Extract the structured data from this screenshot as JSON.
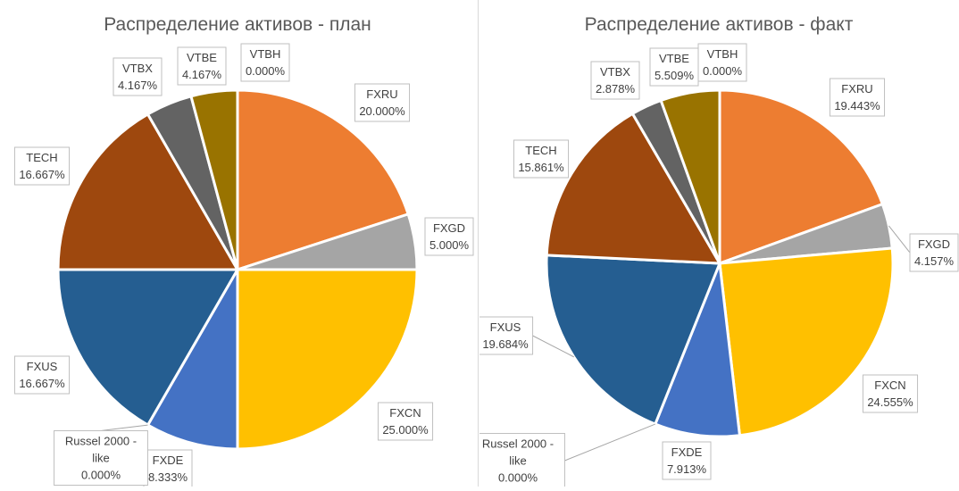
{
  "chart_data": [
    {
      "type": "pie",
      "title": "Распределение активов - план",
      "slices": [
        {
          "label": "FXRU",
          "value": 20.0,
          "value_text": "20.000%",
          "color": "#ED7D31"
        },
        {
          "label": "FXGD",
          "value": 5.0,
          "value_text": "5.000%",
          "color": "#A5A5A5"
        },
        {
          "label": "FXCN",
          "value": 25.0,
          "value_text": "25.000%",
          "color": "#FFC000"
        },
        {
          "label": "FXDE",
          "value": 8.333,
          "value_text": "8.333%",
          "color": "#4472C4"
        },
        {
          "label": "Russel 2000 - like",
          "value": 0.0,
          "value_text": "0.000%",
          "color": "#70AD47"
        },
        {
          "label": "FXUS",
          "value": 16.667,
          "value_text": "16.667%",
          "color": "#255E91"
        },
        {
          "label": "TECH",
          "value": 16.667,
          "value_text": "16.667%",
          "color": "#9E480E"
        },
        {
          "label": "VTBX",
          "value": 4.167,
          "value_text": "4.167%",
          "color": "#636363"
        },
        {
          "label": "VTBE",
          "value": 4.167,
          "value_text": "4.167%",
          "color": "#997300"
        },
        {
          "label": "VTBH",
          "value": 0.0,
          "value_text": "0.000%",
          "color": "#264478"
        }
      ]
    },
    {
      "type": "pie",
      "title": "Распределение активов - факт",
      "slices": [
        {
          "label": "FXRU",
          "value": 19.443,
          "value_text": "19.443%",
          "color": "#ED7D31"
        },
        {
          "label": "FXGD",
          "value": 4.157,
          "value_text": "4.157%",
          "color": "#A5A5A5"
        },
        {
          "label": "FXCN",
          "value": 24.555,
          "value_text": "24.555%",
          "color": "#FFC000"
        },
        {
          "label": "FXDE",
          "value": 7.913,
          "value_text": "7.913%",
          "color": "#4472C4"
        },
        {
          "label": "Russel 2000 - like",
          "value": 0.0,
          "value_text": "0.000%",
          "color": "#70AD47"
        },
        {
          "label": "FXUS",
          "value": 19.684,
          "value_text": "19.684%",
          "color": "#255E91"
        },
        {
          "label": "TECH",
          "value": 15.861,
          "value_text": "15.861%",
          "color": "#9E480E"
        },
        {
          "label": "VTBX",
          "value": 2.878,
          "value_text": "2.878%",
          "color": "#636363"
        },
        {
          "label": "VTBE",
          "value": 5.509,
          "value_text": "5.509%",
          "color": "#997300"
        },
        {
          "label": "VTBH",
          "value": 0.0,
          "value_text": "0.000%",
          "color": "#264478"
        }
      ]
    }
  ]
}
